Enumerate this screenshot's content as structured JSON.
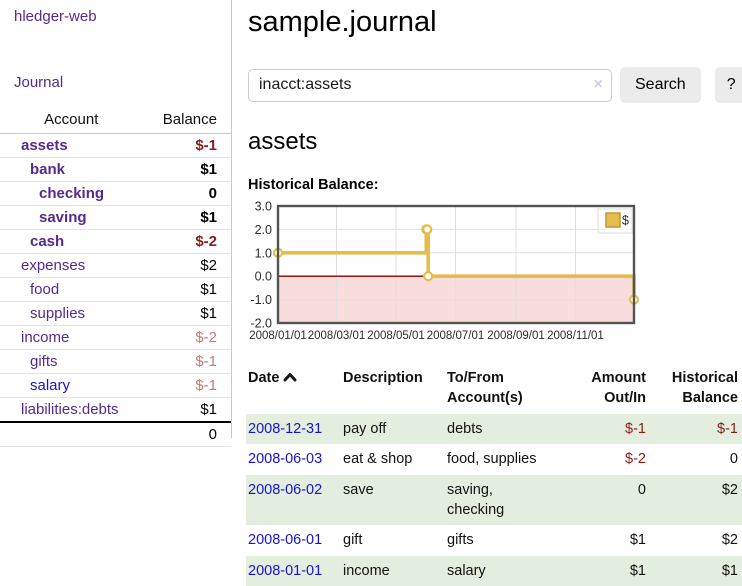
{
  "app_title": "hledger-web",
  "sidebar": {
    "journal_link": "Journal",
    "accounts_table": {
      "headers": {
        "account": "Account",
        "balance": "Balance"
      },
      "rows": [
        {
          "account": "assets",
          "balance": "$-1",
          "level": 0,
          "bold": true,
          "link_color": "purple",
          "balance_tone": "negative-strong"
        },
        {
          "account": "bank",
          "balance": "$1",
          "level": 1,
          "bold": true,
          "link_color": "purple",
          "balance_tone": "normal"
        },
        {
          "account": "checking",
          "balance": "0",
          "level": 2,
          "bold": true,
          "link_color": "purple",
          "balance_tone": "normal"
        },
        {
          "account": "saving",
          "balance": "$1",
          "level": 2,
          "bold": true,
          "link_color": "purple",
          "balance_tone": "normal"
        },
        {
          "account": "cash",
          "balance": "$-2",
          "level": 1,
          "bold": true,
          "link_color": "purple",
          "balance_tone": "negative-strong"
        },
        {
          "account": "expenses",
          "balance": "$2",
          "level": 0,
          "bold": false,
          "link_color": "purple",
          "balance_tone": "normal"
        },
        {
          "account": "food",
          "balance": "$1",
          "level": 1,
          "bold": false,
          "link_color": "purple",
          "balance_tone": "normal"
        },
        {
          "account": "supplies",
          "balance": "$1",
          "level": 1,
          "bold": false,
          "link_color": "purple",
          "balance_tone": "normal"
        },
        {
          "account": "income",
          "balance": "$-2",
          "level": 0,
          "bold": false,
          "link_color": "purple",
          "balance_tone": "negative-soft"
        },
        {
          "account": "gifts",
          "balance": "$-1",
          "level": 1,
          "bold": false,
          "link_color": "purple",
          "balance_tone": "negative-soft"
        },
        {
          "account": "salary",
          "balance": "$-1",
          "level": 1,
          "bold": false,
          "link_color": "blue",
          "balance_tone": "negative-soft"
        },
        {
          "account": "liabilities:debts",
          "balance": "$1",
          "level": 0,
          "bold": false,
          "link_color": "purple",
          "balance_tone": "normal"
        }
      ],
      "total": "0"
    }
  },
  "main": {
    "journal_title": "sample.journal",
    "search": {
      "value": "inacct:assets",
      "clear_label": "×",
      "search_button": "Search",
      "help_button": "?"
    },
    "account_heading": "assets",
    "section_label": "Historical Balance:"
  },
  "chart_data": {
    "type": "line",
    "step": true,
    "title": "",
    "xlabel": "",
    "ylabel": "",
    "series": [
      {
        "name": "$",
        "color": "#e4be4d",
        "points": [
          [
            "2008-01-01",
            1
          ],
          [
            "2008-06-01",
            2
          ],
          [
            "2008-06-02",
            2
          ],
          [
            "2008-06-03",
            0
          ],
          [
            "2008-12-31",
            -1
          ]
        ]
      }
    ],
    "x_range": [
      "2008-01-01",
      "2008-12-31"
    ],
    "x_ticks": [
      "2008/01/01",
      "2008/03/01",
      "2008/05/01",
      "2008/07/01",
      "2008/09/01",
      "2008/11/01"
    ],
    "y_ticks": [
      3.0,
      2.0,
      1.0,
      0.0,
      -1.0,
      -2.0
    ],
    "ylim": [
      -2,
      3
    ],
    "grid": true,
    "negative_region_fill": "#f9dcdc",
    "zero_line_color": "#8b0000",
    "legend": {
      "label": "$",
      "position": "top-right"
    }
  },
  "register_table": {
    "headers": {
      "date": "Date",
      "description": "Description",
      "tofrom": "To/From\nAccount(s)",
      "amount": "Amount\nOut/In",
      "balance": "Historical\nBalance"
    },
    "sort": {
      "column": "date",
      "direction": "ascending"
    },
    "rows": [
      {
        "date": "2008-12-31",
        "description": "pay off",
        "tofrom": "debts",
        "amount": "$-1",
        "amount_tone": "negative",
        "balance": "$-1",
        "balance_tone": "negative"
      },
      {
        "date": "2008-06-03",
        "description": "eat & shop",
        "tofrom": "food, supplies",
        "amount": "$-2",
        "amount_tone": "negative",
        "balance": "0",
        "balance_tone": "normal"
      },
      {
        "date": "2008-06-02",
        "description": "save",
        "tofrom": "saving,\nchecking",
        "amount": "0",
        "amount_tone": "normal",
        "balance": "$2",
        "balance_tone": "normal"
      },
      {
        "date": "2008-06-01",
        "description": "gift",
        "tofrom": "gifts",
        "amount": "$1",
        "amount_tone": "normal",
        "balance": "$2",
        "balance_tone": "normal"
      },
      {
        "date": "2008-01-01",
        "description": "income",
        "tofrom": "salary",
        "amount": "$1",
        "amount_tone": "normal",
        "balance": "$1",
        "balance_tone": "normal"
      }
    ]
  },
  "colors": {
    "link_purple": "#552a8e",
    "link_blue": "#1414cf",
    "negative_strong": "#8e1b1b",
    "negative_soft": "#c47a7a",
    "row_highlight_green": "#e4eede",
    "chart_gold": "#e4be4d",
    "chart_negative_fill": "#f9dcdc",
    "chart_zero_line": "#8b0000",
    "chart_border": "#545454"
  }
}
